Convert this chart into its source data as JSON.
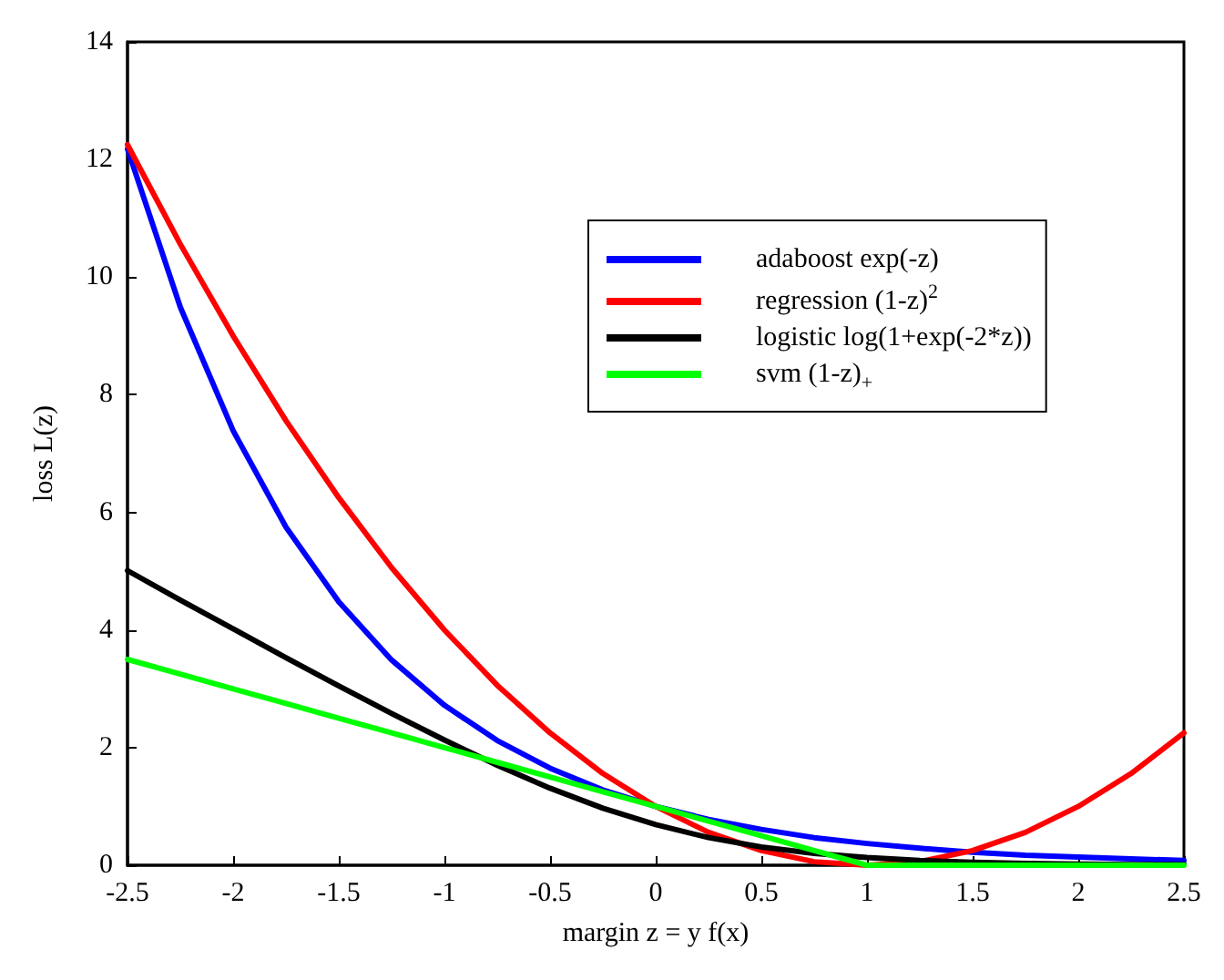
{
  "chart_data": {
    "type": "line",
    "xlabel": "margin z = y f(x)",
    "ylabel": "loss L(z)",
    "x": [
      -2.5,
      -2.25,
      -2,
      -1.75,
      -1.5,
      -1.25,
      -1,
      -0.75,
      -0.5,
      -0.25,
      0,
      0.25,
      0.5,
      0.75,
      1,
      1.25,
      1.5,
      1.75,
      2,
      2.25,
      2.5
    ],
    "series": [
      {
        "name": "adaboost exp(-z)",
        "color": "#0000ff",
        "values": [
          12.18,
          9.49,
          7.39,
          5.75,
          4.48,
          3.49,
          2.72,
          2.12,
          1.65,
          1.28,
          1.0,
          0.78,
          0.61,
          0.47,
          0.37,
          0.29,
          0.22,
          0.17,
          0.14,
          0.11,
          0.08
        ]
      },
      {
        "name": "regression (1-z)$^{2}$",
        "color": "#ff0000",
        "values": [
          12.25,
          10.56,
          9,
          7.56,
          6.25,
          5.06,
          4,
          3.06,
          2.25,
          1.56,
          1,
          0.56,
          0.25,
          0.06,
          0,
          0.06,
          0.25,
          0.56,
          1,
          1.56,
          2.25
        ]
      },
      {
        "name": "logistic log(1+exp(-2*z))",
        "color": "#000000",
        "values": [
          5.01,
          4.51,
          4.02,
          3.53,
          3.05,
          2.58,
          2.13,
          1.7,
          1.31,
          0.97,
          0.69,
          0.47,
          0.31,
          0.2,
          0.13,
          0.08,
          0.05,
          0.03,
          0.02,
          0.01,
          0.01
        ]
      },
      {
        "name": "svm (1-z)$_{+}$",
        "color": "#00ff00",
        "values": [
          3.5,
          3.25,
          3,
          2.75,
          2.5,
          2.25,
          2,
          1.75,
          1.5,
          1.25,
          1,
          0.75,
          0.5,
          0.25,
          0,
          0,
          0,
          0,
          0,
          0,
          0
        ]
      }
    ],
    "xlim": [
      -2.5,
      2.5
    ],
    "xticks": [
      -2.5,
      -2,
      -1.5,
      -1,
      -0.5,
      0,
      0.5,
      1,
      1.5,
      2,
      2.5
    ],
    "ylim": [
      0,
      14
    ],
    "yticks": [
      0,
      2,
      4,
      6,
      8,
      10,
      12,
      14
    ],
    "grid": false,
    "legend": "right",
    "marker": "none",
    "line_style": "solid"
  }
}
